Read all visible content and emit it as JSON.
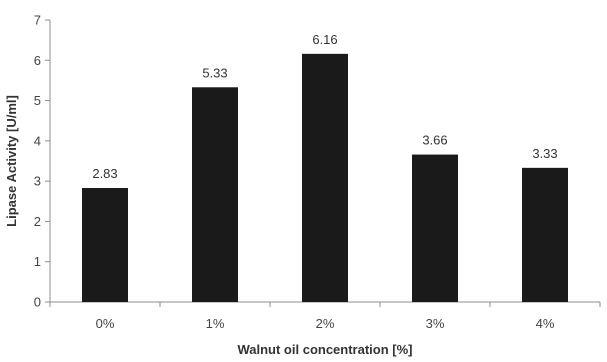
{
  "chart_data": {
    "type": "bar",
    "title": "",
    "xlabel": "Walnut oil concentration [%]",
    "ylabel": "Lipase Activity [U/ml]",
    "categories": [
      "0%",
      "1%",
      "2%",
      "3%",
      "4%"
    ],
    "values": [
      2.83,
      5.33,
      6.16,
      3.66,
      3.33
    ],
    "data_labels": [
      "2.83",
      "5.33",
      "6.16",
      "3.66",
      "3.33"
    ],
    "ylim": [
      0,
      7
    ],
    "yticks": [
      "0",
      "1",
      "2",
      "3",
      "4",
      "5",
      "6",
      "7"
    ],
    "bar_color": "#1a1a1a",
    "grid": false,
    "legend": "none"
  }
}
